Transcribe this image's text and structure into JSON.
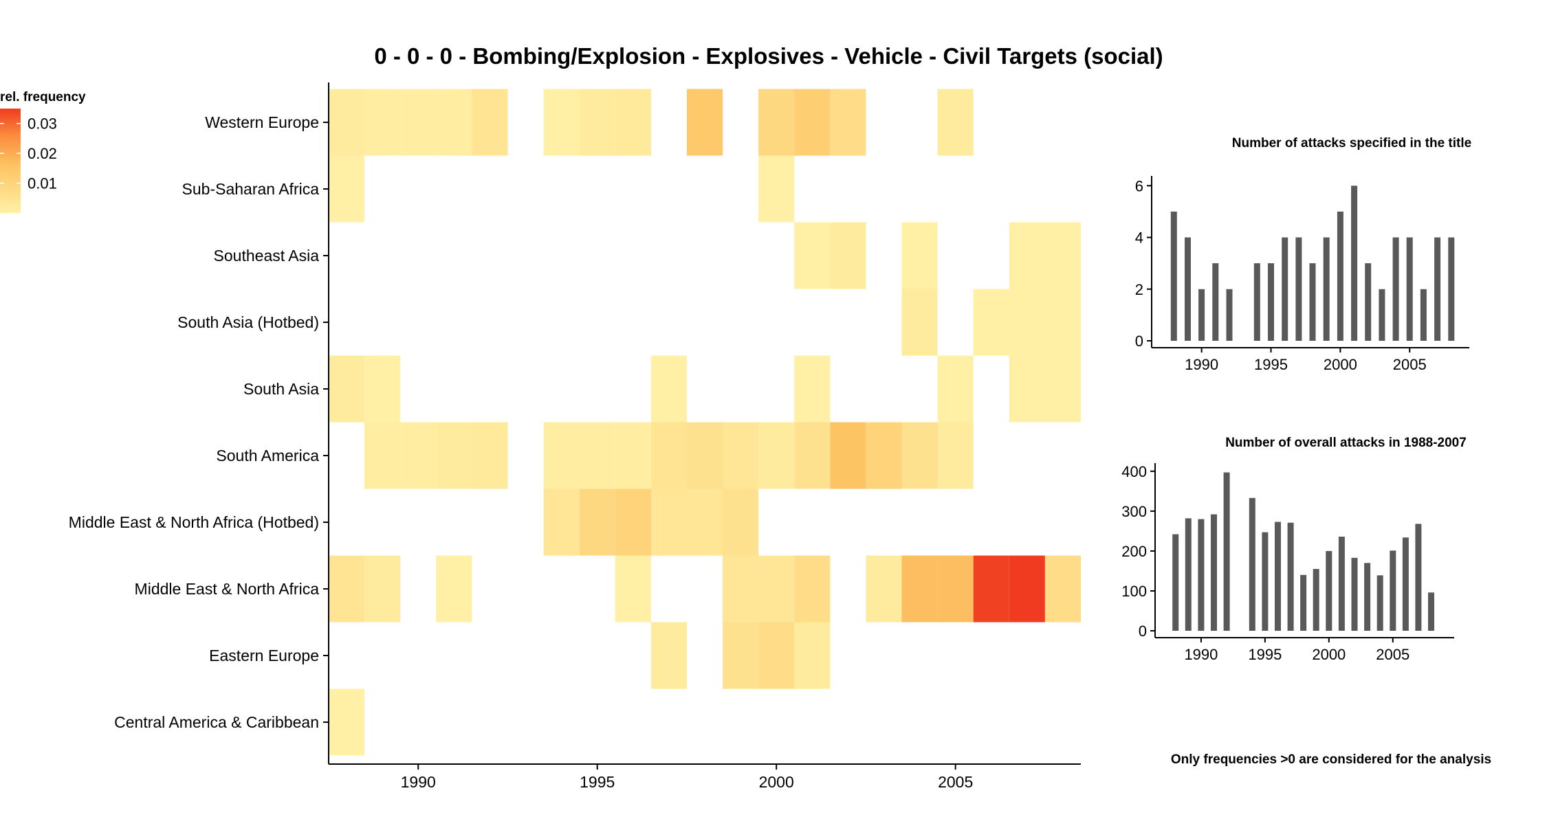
{
  "chart_data": [
    {
      "type": "heatmap",
      "title": "0 - 0 - 0 - Bombing/Explosion - Explosives - Vehicle - Civil Targets (social)",
      "legend": {
        "title": "rel. frequency",
        "ticks": [
          0.01,
          0.02,
          0.03
        ],
        "min": 0,
        "max": 0.035,
        "position": "top-left",
        "color_low": "#FFF0A5",
        "color_mid": "#FDC463",
        "color_high": "#F03B20"
      },
      "xlim": [
        1987.5,
        2008.5
      ],
      "x_ticks": [
        1990,
        1995,
        2000,
        2005
      ],
      "regions": [
        "Western Europe",
        "Sub-Saharan Africa",
        "Southeast Asia",
        "South Asia (Hotbed)",
        "South Asia",
        "South America",
        "Middle East & North Africa (Hotbed)",
        "Middle East & North Africa",
        "Eastern Europe",
        "Central America & Caribbean"
      ],
      "cells": [
        {
          "region": "Western Europe",
          "year": 1988,
          "value": 0.004
        },
        {
          "region": "Western Europe",
          "year": 1989,
          "value": 0.0035
        },
        {
          "region": "Western Europe",
          "year": 1990,
          "value": 0.0035
        },
        {
          "region": "Western Europe",
          "year": 1991,
          "value": 0.0035
        },
        {
          "region": "Western Europe",
          "year": 1992,
          "value": 0.0055
        },
        {
          "region": "Western Europe",
          "year": 1994,
          "value": 0.003
        },
        {
          "region": "Western Europe",
          "year": 1995,
          "value": 0.004
        },
        {
          "region": "Western Europe",
          "year": 1996,
          "value": 0.0045
        },
        {
          "region": "Western Europe",
          "year": 1998,
          "value": 0.011
        },
        {
          "region": "Western Europe",
          "year": 2000,
          "value": 0.008
        },
        {
          "region": "Western Europe",
          "year": 2001,
          "value": 0.01
        },
        {
          "region": "Western Europe",
          "year": 2002,
          "value": 0.007
        },
        {
          "region": "Western Europe",
          "year": 2005,
          "value": 0.004
        },
        {
          "region": "Sub-Saharan Africa",
          "year": 1988,
          "value": 0.003
        },
        {
          "region": "Sub-Saharan Africa",
          "year": 2000,
          "value": 0.003
        },
        {
          "region": "Southeast Asia",
          "year": 2001,
          "value": 0.003
        },
        {
          "region": "Southeast Asia",
          "year": 2002,
          "value": 0.004
        },
        {
          "region": "Southeast Asia",
          "year": 2004,
          "value": 0.003
        },
        {
          "region": "Southeast Asia",
          "year": 2007,
          "value": 0.003
        },
        {
          "region": "Southeast Asia",
          "year": 2008,
          "value": 0.003
        },
        {
          "region": "South Asia (Hotbed)",
          "year": 2004,
          "value": 0.004
        },
        {
          "region": "South Asia (Hotbed)",
          "year": 2006,
          "value": 0.003
        },
        {
          "region": "South Asia (Hotbed)",
          "year": 2007,
          "value": 0.003
        },
        {
          "region": "South Asia (Hotbed)",
          "year": 2008,
          "value": 0.003
        },
        {
          "region": "South Asia",
          "year": 1988,
          "value": 0.004
        },
        {
          "region": "South Asia",
          "year": 1989,
          "value": 0.003
        },
        {
          "region": "South Asia",
          "year": 1997,
          "value": 0.003
        },
        {
          "region": "South Asia",
          "year": 2001,
          "value": 0.003
        },
        {
          "region": "South Asia",
          "year": 2005,
          "value": 0.003
        },
        {
          "region": "South Asia",
          "year": 2007,
          "value": 0.003
        },
        {
          "region": "South Asia",
          "year": 2008,
          "value": 0.003
        },
        {
          "region": "South America",
          "year": 1989,
          "value": 0.0035
        },
        {
          "region": "South America",
          "year": 1990,
          "value": 0.0035
        },
        {
          "region": "South America",
          "year": 1991,
          "value": 0.004
        },
        {
          "region": "South America",
          "year": 1992,
          "value": 0.0045
        },
        {
          "region": "South America",
          "year": 1994,
          "value": 0.0035
        },
        {
          "region": "South America",
          "year": 1995,
          "value": 0.0035
        },
        {
          "region": "South America",
          "year": 1996,
          "value": 0.0035
        },
        {
          "region": "South America",
          "year": 1997,
          "value": 0.0055
        },
        {
          "region": "South America",
          "year": 1998,
          "value": 0.006
        },
        {
          "region": "South America",
          "year": 1999,
          "value": 0.005
        },
        {
          "region": "South America",
          "year": 2000,
          "value": 0.004
        },
        {
          "region": "South America",
          "year": 2001,
          "value": 0.006
        },
        {
          "region": "South America",
          "year": 2002,
          "value": 0.012
        },
        {
          "region": "South America",
          "year": 2003,
          "value": 0.009
        },
        {
          "region": "South America",
          "year": 2004,
          "value": 0.006
        },
        {
          "region": "South America",
          "year": 2005,
          "value": 0.004
        },
        {
          "region": "Middle East & North Africa (Hotbed)",
          "year": 1994,
          "value": 0.005
        },
        {
          "region": "Middle East & North Africa (Hotbed)",
          "year": 1995,
          "value": 0.008
        },
        {
          "region": "Middle East & North Africa (Hotbed)",
          "year": 1996,
          "value": 0.009
        },
        {
          "region": "Middle East & North Africa (Hotbed)",
          "year": 1997,
          "value": 0.005
        },
        {
          "region": "Middle East & North Africa (Hotbed)",
          "year": 1998,
          "value": 0.005
        },
        {
          "region": "Middle East & North Africa (Hotbed)",
          "year": 1999,
          "value": 0.006
        },
        {
          "region": "Middle East & North Africa",
          "year": 1988,
          "value": 0.0055
        },
        {
          "region": "Middle East & North Africa",
          "year": 1989,
          "value": 0.004
        },
        {
          "region": "Middle East & North Africa",
          "year": 1991,
          "value": 0.003
        },
        {
          "region": "Middle East & North Africa",
          "year": 1996,
          "value": 0.003
        },
        {
          "region": "Middle East & North Africa",
          "year": 1999,
          "value": 0.005
        },
        {
          "region": "Middle East & North Africa",
          "year": 2000,
          "value": 0.005
        },
        {
          "region": "Middle East & North Africa",
          "year": 2001,
          "value": 0.007
        },
        {
          "region": "Middle East & North Africa",
          "year": 2003,
          "value": 0.004
        },
        {
          "region": "Middle East & North Africa",
          "year": 2004,
          "value": 0.013
        },
        {
          "region": "Middle East & North Africa",
          "year": 2005,
          "value": 0.013
        },
        {
          "region": "Middle East & North Africa",
          "year": 2006,
          "value": 0.033
        },
        {
          "region": "Middle East & North Africa",
          "year": 2007,
          "value": 0.034
        },
        {
          "region": "Middle East & North Africa",
          "year": 2008,
          "value": 0.007
        },
        {
          "region": "Eastern Europe",
          "year": 1997,
          "value": 0.004
        },
        {
          "region": "Eastern Europe",
          "year": 1999,
          "value": 0.006
        },
        {
          "region": "Eastern Europe",
          "year": 2000,
          "value": 0.007
        },
        {
          "region": "Eastern Europe",
          "year": 2001,
          "value": 0.004
        },
        {
          "region": "Central America & Caribbean",
          "year": 1988,
          "value": 0.003
        }
      ]
    },
    {
      "type": "bar",
      "title": "Number of attacks specified in the title",
      "x": [
        1988,
        1989,
        1990,
        1991,
        1992,
        1994,
        1995,
        1996,
        1997,
        1998,
        1999,
        2000,
        2001,
        2002,
        2003,
        2004,
        2005,
        2006,
        2007,
        2008
      ],
      "values": [
        5,
        4,
        2,
        3,
        2,
        3,
        3,
        4,
        4,
        3,
        4,
        5,
        6,
        3,
        2,
        4,
        4,
        2,
        4,
        4
      ],
      "ylim": [
        0,
        6.3
      ],
      "y_ticks": [
        0,
        2,
        4,
        6
      ],
      "x_ticks": [
        1990,
        1995,
        2000,
        2005
      ],
      "color": "#595959"
    },
    {
      "type": "bar",
      "title": "Number of overall attacks in 1988-2007",
      "x": [
        1988,
        1989,
        1990,
        1991,
        1992,
        1994,
        1995,
        1996,
        1997,
        1998,
        1999,
        2000,
        2001,
        2002,
        2003,
        2004,
        2005,
        2006,
        2007,
        2008
      ],
      "values": [
        242,
        282,
        280,
        292,
        397,
        333,
        247,
        273,
        271,
        140,
        155,
        200,
        236,
        183,
        170,
        139,
        201,
        234,
        268,
        96
      ],
      "ylim": [
        0,
        410
      ],
      "y_ticks": [
        0,
        100,
        200,
        300,
        400
      ],
      "x_ticks": [
        1990,
        1995,
        2000,
        2005
      ],
      "color": "#595959"
    }
  ],
  "footnote": "Only frequencies >0 are considered for the analysis"
}
